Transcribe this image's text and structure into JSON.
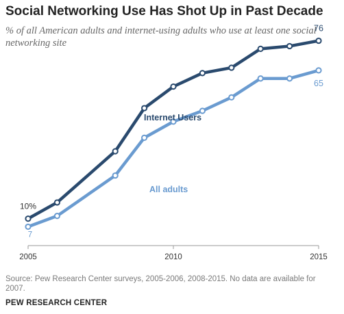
{
  "title": "Social Networking Use Has Shot Up in Past Decade",
  "subtitle": "% of all American adults and internet-using adults who use at least one social networking site",
  "source": "Source: Pew Research Center surveys, 2005-2006, 2008-2015. No data are available for 2007.",
  "org": "PEW RESEARCH CENTER",
  "colors": {
    "internet_users": "#2a4a6e",
    "all_adults": "#6a9bd0",
    "axis": "#999999",
    "text": "#333333"
  },
  "chart_data": {
    "type": "line",
    "title": "Social Networking Use Has Shot Up in Past Decade",
    "xlim": [
      2005,
      2015
    ],
    "ylim": [
      0,
      80
    ],
    "x_ticks": [
      "2005",
      "2010",
      "2015"
    ],
    "series": [
      {
        "name": "Internet Users",
        "x": [
          2005,
          2006,
          2008,
          2009,
          2010,
          2011,
          2012,
          2013,
          2014,
          2015
        ],
        "values": [
          10,
          16,
          35,
          51,
          59,
          64,
          66,
          73,
          74,
          76
        ],
        "labels": {
          "first": "10%",
          "last": "76"
        }
      },
      {
        "name": "All adults",
        "x": [
          2005,
          2006,
          2008,
          2009,
          2010,
          2011,
          2012,
          2013,
          2014,
          2015
        ],
        "values": [
          7,
          11,
          26,
          40,
          46,
          50,
          55,
          62,
          62,
          65
        ],
        "labels": {
          "first": "7",
          "last": "65"
        }
      }
    ]
  }
}
